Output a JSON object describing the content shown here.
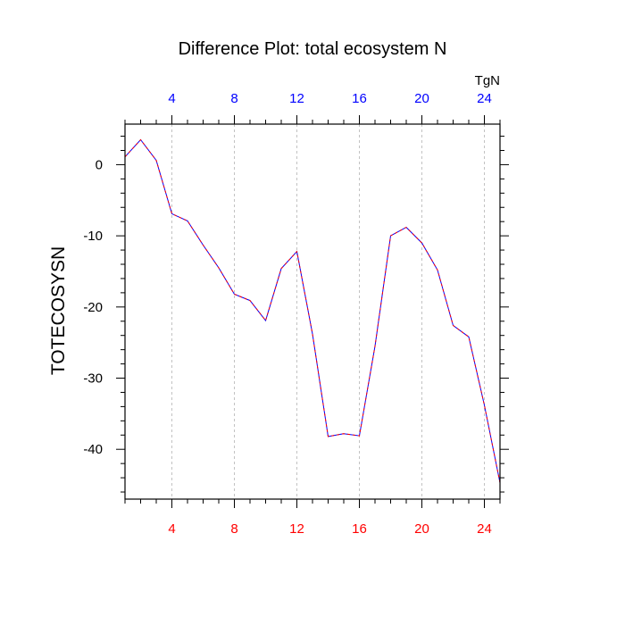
{
  "chart_data": {
    "type": "line",
    "title": "Difference Plot: total ecosystem N",
    "ylabel": "TOTECOSYSN",
    "units_label": "TgN",
    "xlim": [
      1,
      25
    ],
    "ylim": [
      -47,
      5.7
    ],
    "x_ticks": [
      4,
      8,
      12,
      16,
      20,
      24
    ],
    "y_ticks": [
      0,
      -10,
      -20,
      -30,
      -40
    ],
    "x_minor_step": 1,
    "y_minor_step": 2,
    "grid": "vertical dashed at major x ticks",
    "bottom_tick_color": "#ff0000",
    "top_tick_color": "#0000ff",
    "series": [
      {
        "line_colors": [
          "#0000ff",
          "#ff0000"
        ],
        "x": [
          1,
          2,
          3,
          4,
          5,
          6,
          7,
          8,
          9,
          10,
          11,
          12,
          13,
          14,
          15,
          16,
          17,
          18,
          19,
          20,
          21,
          22,
          23,
          24,
          25
        ],
        "values": [
          1.1,
          3.5,
          0.6,
          -6.9,
          -7.9,
          -11.3,
          -14.5,
          -18.2,
          -19.1,
          -21.9,
          -14.6,
          -12.2,
          -23.8,
          -38.2,
          -37.8,
          -38.1,
          -25.5,
          -10.0,
          -8.8,
          -11.0,
          -14.8,
          -22.6,
          -24.2,
          -33.8,
          -44.7
        ]
      }
    ]
  }
}
